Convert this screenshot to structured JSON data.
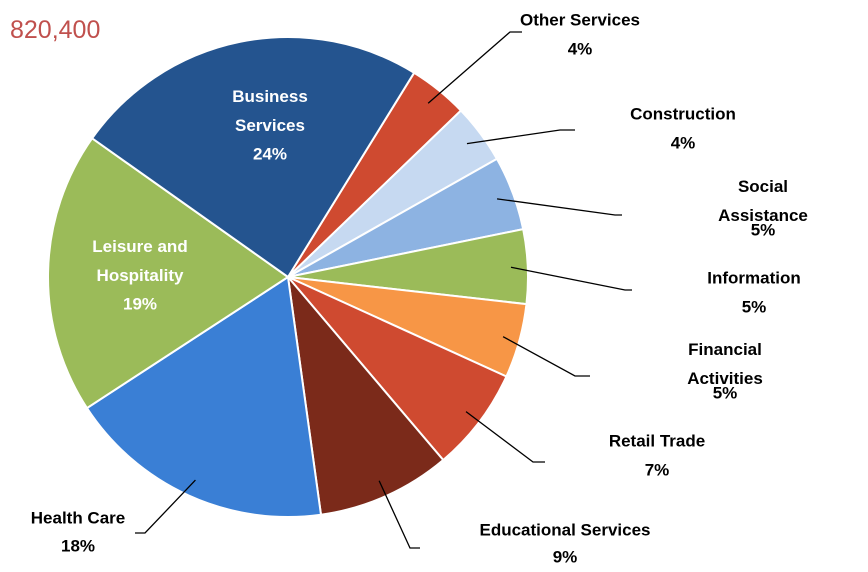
{
  "chart_data": {
    "type": "pie",
    "subtitle": "820,400",
    "categories": [
      "Other Services",
      "Construction",
      "Social Assistance",
      "Information",
      "Financial Activities",
      "Retail Trade",
      "Educational Services",
      "Health Care",
      "Leisure and Hospitality",
      "Business Services"
    ],
    "values": [
      4,
      4,
      5,
      5,
      5,
      7,
      9,
      18,
      19,
      24
    ],
    "value_labels": [
      "4%",
      "4%",
      "5%",
      "5%",
      "5%",
      "7%",
      "9%",
      "18%",
      "19%",
      "24%"
    ],
    "colors": [
      "#cf4a30",
      "#c6d9f1",
      "#8db3e2",
      "#9bbb59",
      "#f79646",
      "#cf4a30",
      "#7b2a1a",
      "#3a7fd5",
      "#9bbb59",
      "#24548f"
    ]
  }
}
